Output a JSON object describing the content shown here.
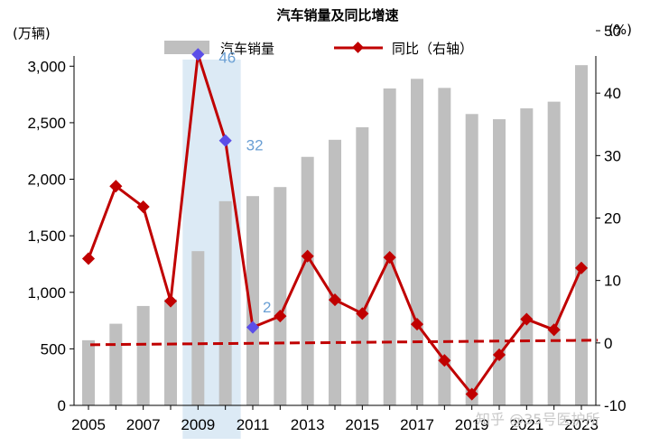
{
  "chart_data": {
    "type": "bar",
    "title": "汽车销量及同比增速",
    "y_left_unit": "(万辆)",
    "y_right_unit": "(%)",
    "x": [
      2005,
      2006,
      2007,
      2008,
      2009,
      2010,
      2011,
      2012,
      2013,
      2014,
      2015,
      2016,
      2017,
      2018,
      2019,
      2020,
      2021,
      2022,
      2023
    ],
    "x_tick_labels": [
      "2005",
      "2007",
      "2009",
      "2011",
      "2013",
      "2015",
      "2017",
      "2019",
      "2021",
      "2023"
    ],
    "y_left_ticks": [
      "0",
      "500",
      "1,000",
      "1,500",
      "2,000",
      "2,500",
      "3,000"
    ],
    "y_left_lim": [
      0,
      3250
    ],
    "y_right_ticks": [
      "-10",
      "0",
      "10",
      "20",
      "30",
      "40",
      "50"
    ],
    "y_right_lim": [
      -10,
      50
    ],
    "series": [
      {
        "name": "汽车销量",
        "kind": "bar",
        "axis": "left",
        "color": "#bfbfbf",
        "values": [
          576,
          722,
          879,
          938,
          1364,
          1806,
          1851,
          1931,
          2198,
          2349,
          2460,
          2803,
          2888,
          2808,
          2577,
          2531,
          2627,
          2686,
          3009
        ]
      },
      {
        "name": "同比（右轴）",
        "kind": "line",
        "axis": "right",
        "color": "#c00000",
        "values": [
          13.5,
          25.1,
          21.8,
          6.7,
          46.2,
          32.4,
          2.5,
          4.3,
          13.9,
          6.9,
          4.7,
          13.7,
          3.0,
          -2.8,
          -8.2,
          -1.9,
          3.8,
          2.1,
          12.0
        ]
      }
    ],
    "reference_line": {
      "axis": "right",
      "value": 0,
      "style": "dashed",
      "color": "#c00000"
    },
    "highlight": {
      "x_range": [
        2009,
        2010
      ],
      "color": "#d6e6f3"
    },
    "annotations": [
      {
        "x": 2009,
        "value": 46,
        "label": "46",
        "color": "#6a9fd4"
      },
      {
        "x": 2010,
        "value": 32,
        "label": "32",
        "color": "#6a9fd4"
      },
      {
        "x": 2011,
        "value": 2,
        "label": "2",
        "color": "#6a9fd4"
      }
    ],
    "highlight_marker_color": "#5b4ee8",
    "legend_position": "top"
  },
  "watermark": "知乎 @35号医护所"
}
